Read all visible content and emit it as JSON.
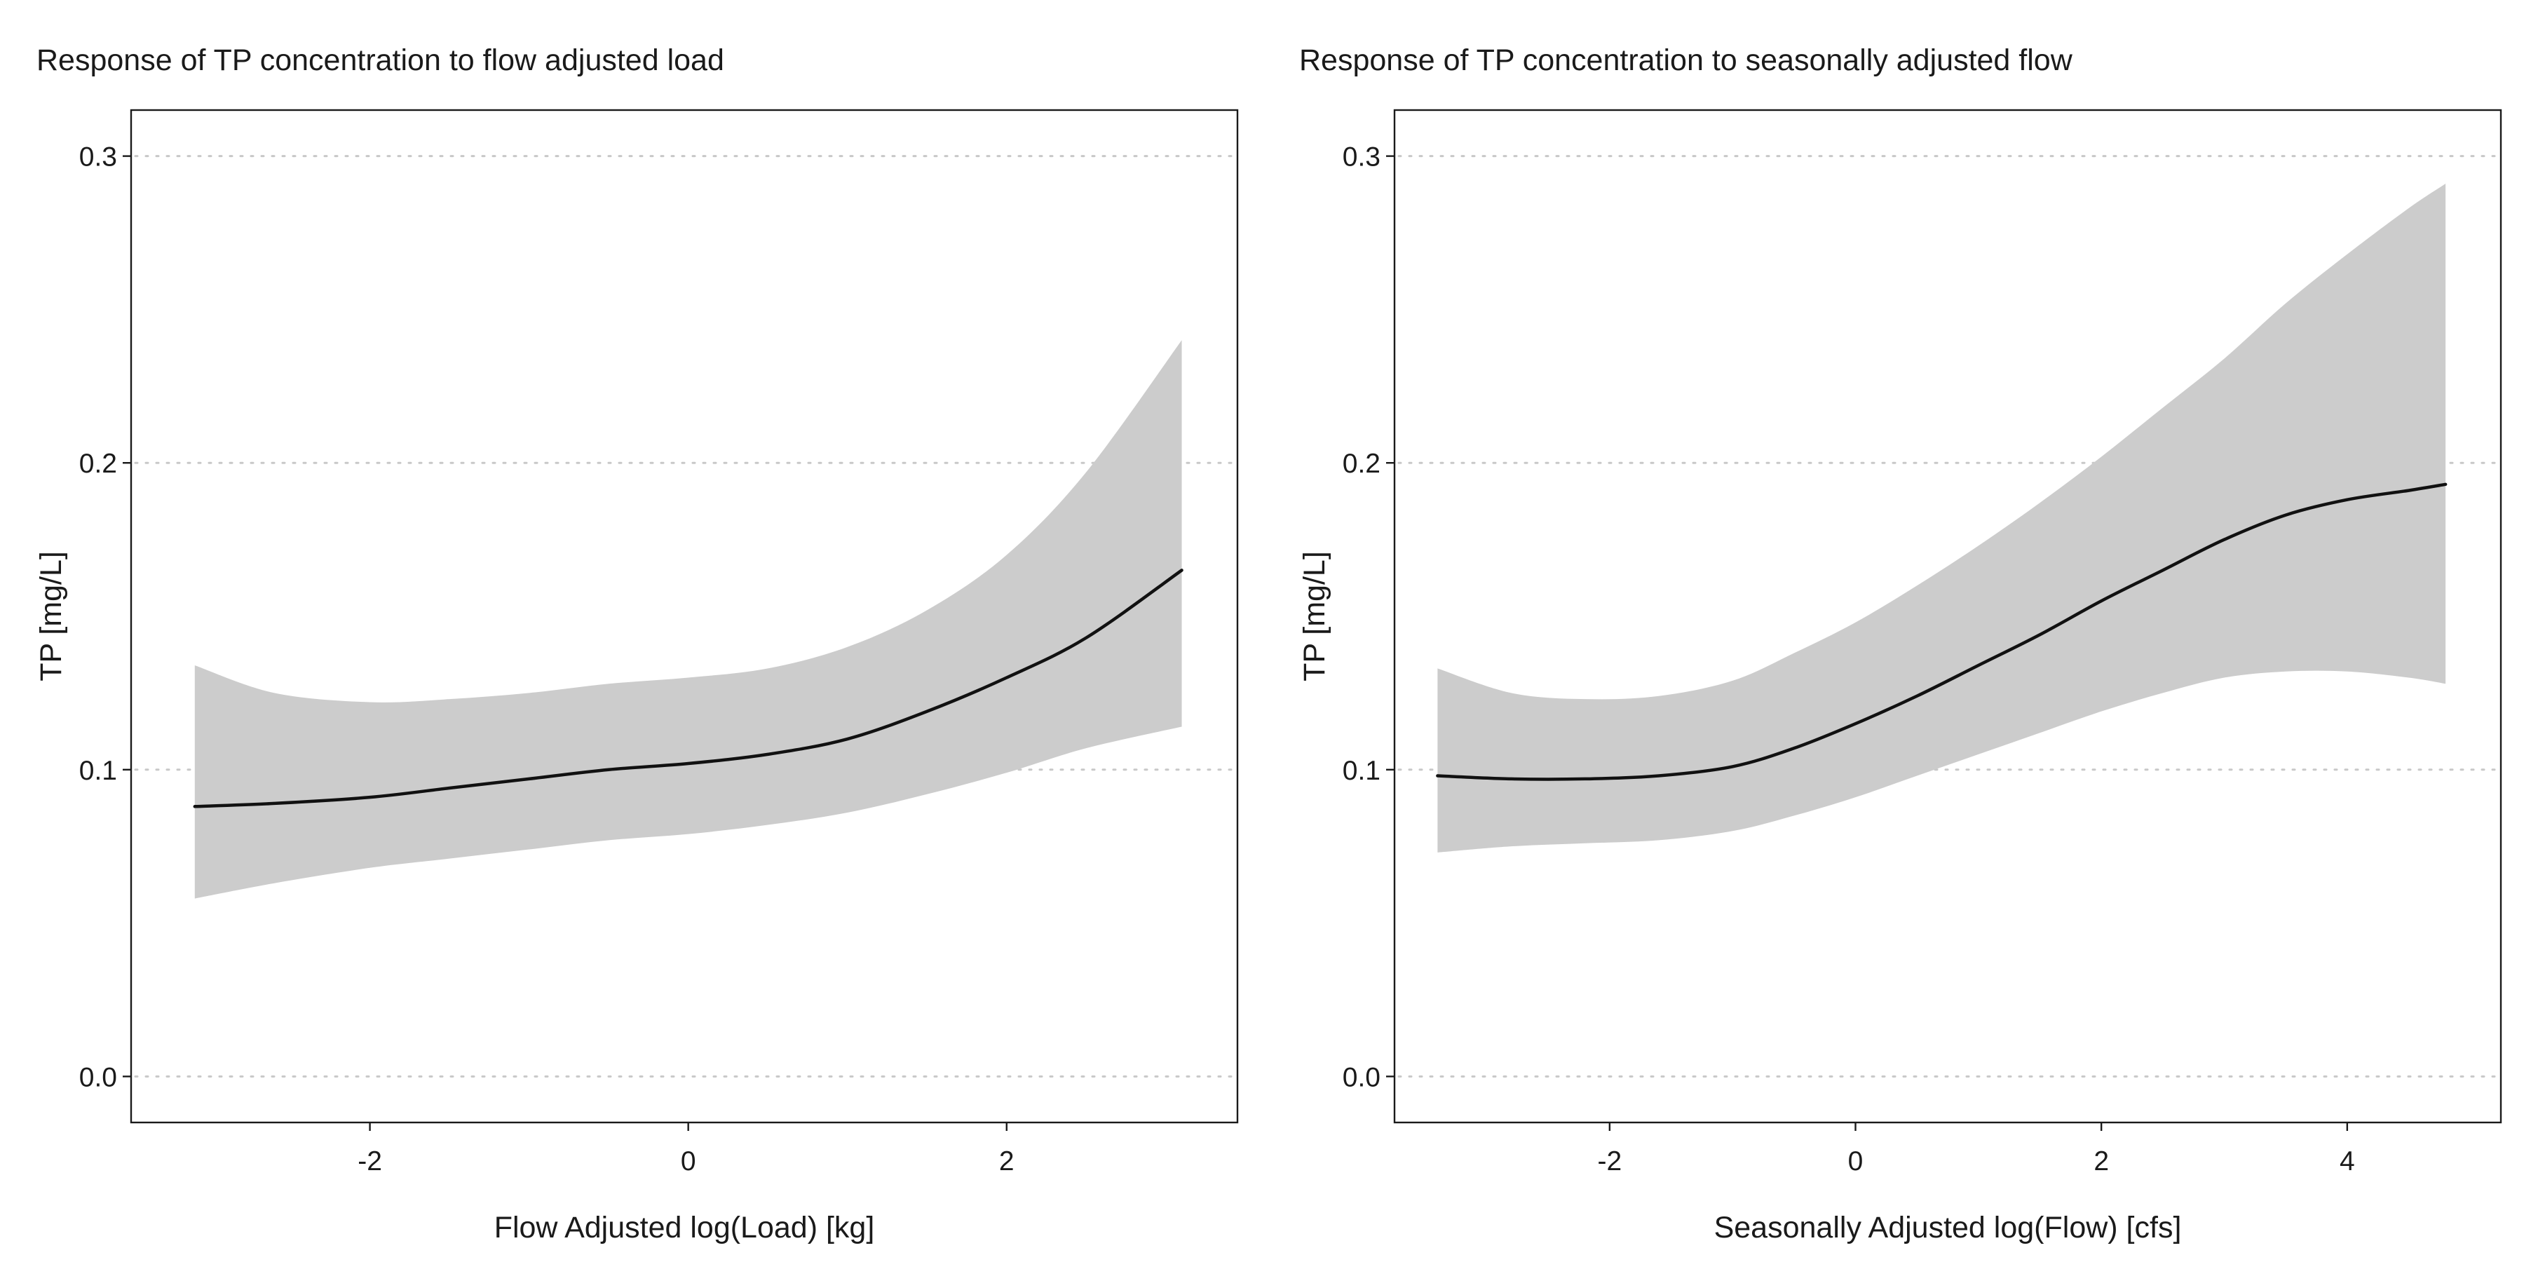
{
  "chart_data": [
    {
      "type": "area",
      "title": "Response of TP concentration to flow adjusted load",
      "xlabel": "Flow Adjusted log(Load) [kg]",
      "ylabel": "TP [mg/L]",
      "xlim": [
        -3.5,
        3.45
      ],
      "ylim": [
        -0.015,
        0.315
      ],
      "xticks": [
        -2,
        0,
        2
      ],
      "xtick_labels": [
        "-2",
        "0",
        "2"
      ],
      "yticks": [
        0.0,
        0.1,
        0.2,
        0.3
      ],
      "ytick_labels": [
        "0.0",
        "0.1",
        "0.2",
        "0.3"
      ],
      "grid": "horizontal dotted",
      "colors": {
        "line": "#111111",
        "ribbon": "#cccccc",
        "grid": "#c8c8c8"
      },
      "series": [
        {
          "x": [
            -3.1,
            -2.6,
            -2.0,
            -1.5,
            -1.0,
            -0.5,
            0.0,
            0.5,
            1.0,
            1.5,
            2.0,
            2.5,
            3.1
          ],
          "y": [
            0.088,
            0.089,
            0.091,
            0.094,
            0.097,
            0.1,
            0.102,
            0.105,
            0.11,
            0.119,
            0.13,
            0.143,
            0.165
          ],
          "lower": [
            0.058,
            0.063,
            0.068,
            0.071,
            0.074,
            0.077,
            0.079,
            0.082,
            0.086,
            0.092,
            0.099,
            0.107,
            0.114
          ],
          "upper": [
            0.134,
            0.125,
            0.122,
            0.123,
            0.125,
            0.128,
            0.13,
            0.133,
            0.14,
            0.152,
            0.17,
            0.197,
            0.24
          ]
        }
      ]
    },
    {
      "type": "area",
      "title": "Response of TP concentration to seasonally adjusted flow",
      "xlabel": "Seasonally Adjusted log(Flow) [cfs]",
      "ylabel": "TP [mg/L]",
      "xlim": [
        -3.75,
        5.25
      ],
      "ylim": [
        -0.015,
        0.315
      ],
      "xticks": [
        -2,
        0,
        2,
        4
      ],
      "xtick_labels": [
        "-2",
        "0",
        "2",
        "4"
      ],
      "yticks": [
        0.0,
        0.1,
        0.2,
        0.3
      ],
      "ytick_labels": [
        "0.0",
        "0.1",
        "0.2",
        "0.3"
      ],
      "grid": "horizontal dotted",
      "colors": {
        "line": "#111111",
        "ribbon": "#cccccc",
        "grid": "#c8c8c8"
      },
      "series": [
        {
          "x": [
            -3.4,
            -2.8,
            -2.2,
            -1.6,
            -1.0,
            -0.5,
            0.0,
            0.5,
            1.0,
            1.5,
            2.0,
            2.5,
            3.0,
            3.5,
            4.0,
            4.5,
            4.8
          ],
          "y": [
            0.098,
            0.097,
            0.097,
            0.098,
            0.101,
            0.107,
            0.115,
            0.124,
            0.134,
            0.144,
            0.155,
            0.165,
            0.175,
            0.183,
            0.188,
            0.191,
            0.193
          ],
          "lower": [
            0.073,
            0.075,
            0.076,
            0.077,
            0.08,
            0.085,
            0.091,
            0.098,
            0.105,
            0.112,
            0.119,
            0.125,
            0.13,
            0.132,
            0.132,
            0.13,
            0.128
          ],
          "upper": [
            0.133,
            0.125,
            0.123,
            0.124,
            0.129,
            0.138,
            0.148,
            0.16,
            0.173,
            0.187,
            0.202,
            0.218,
            0.234,
            0.252,
            0.268,
            0.283,
            0.291
          ]
        }
      ]
    }
  ]
}
